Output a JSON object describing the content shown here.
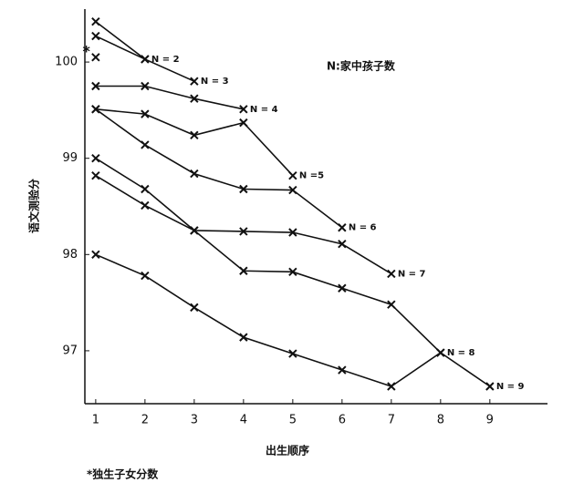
{
  "chart_data": {
    "type": "line",
    "x_label": "出生顺序",
    "y_label": "语文测验分",
    "annotation": "N:家中孩子数",
    "footnote": "*独生子女分数",
    "x": [
      1,
      2,
      3,
      4,
      5,
      6,
      7,
      8,
      9
    ],
    "xlim": [
      0.78,
      10.17
    ],
    "xticks": [
      1,
      2,
      3,
      4,
      5,
      6,
      7,
      8,
      9
    ],
    "ylim": [
      96.45,
      100.55
    ],
    "yticks": [
      97,
      98,
      99,
      100
    ],
    "color": "#111111",
    "series": [
      {
        "name": "*",
        "values": [
          100.05,
          null,
          null,
          null,
          null,
          null,
          null,
          null,
          null
        ]
      },
      {
        "name": "N = 2",
        "values": [
          100.27,
          100.03,
          null,
          null,
          null,
          null,
          null,
          null,
          null
        ]
      },
      {
        "name": "N = 3",
        "values": [
          100.42,
          100.03,
          99.8,
          null,
          null,
          null,
          null,
          null,
          null
        ]
      },
      {
        "name": "N = 4",
        "values": [
          99.75,
          99.75,
          99.62,
          99.51,
          null,
          null,
          null,
          null,
          null
        ]
      },
      {
        "name": "N =5",
        "values": [
          99.51,
          99.46,
          99.24,
          99.37,
          98.82,
          null,
          null,
          null,
          null
        ]
      },
      {
        "name": "N = 6",
        "values": [
          99.51,
          99.14,
          98.84,
          98.68,
          98.67,
          98.28,
          null,
          null,
          null
        ]
      },
      {
        "name": "N = 7",
        "values": [
          99.0,
          98.68,
          98.25,
          98.24,
          98.23,
          98.11,
          97.8,
          null,
          null
        ]
      },
      {
        "name": "N = 8",
        "values": [
          98.82,
          98.51,
          98.25,
          97.83,
          97.82,
          97.65,
          97.48,
          96.98,
          null
        ]
      },
      {
        "name": "N = 9",
        "values": [
          98.0,
          97.78,
          97.45,
          97.14,
          96.97,
          96.8,
          96.63,
          96.98,
          96.63
        ]
      }
    ]
  }
}
